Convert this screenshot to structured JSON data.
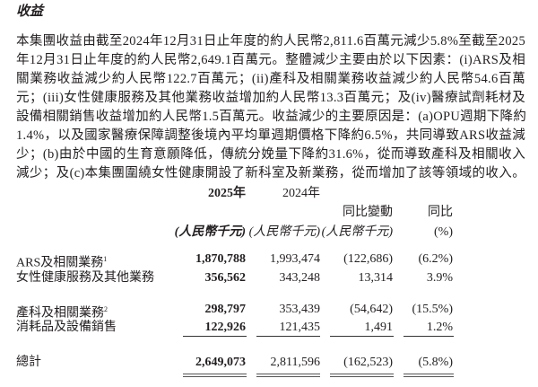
{
  "section_title": "收益",
  "paragraph_lines": [
    "本集團收益由截至2024年12月31日止年度的約人民幣2,811.6百萬元減少5.8%至截至2025",
    "年12月31日止年度的約人民幣2,649.1百萬元。整體減少主要由於以下因素：(i)ARS及相",
    "關業務收益減少約人民幣122.7百萬元；(ii)產科及相關業務收益減少約人民幣54.6百萬",
    "元；(iii)女性健康服務及其他業務收益增加約人民幣13.3百萬元；及(iv)醫療試劑耗材及",
    "設備相關銷售收益增加約人民幣1.5百萬元。收益減少的主要原因是：(a)OPU週期下降約",
    "1.4%，以及國家醫療保障調整後境內平均單週期價格下降約6.5%，共同導致ARS收益減",
    "少；(b)由於中國的生育意願降低，傳統分娩量下降約31.6%，從而導致產科及相關收入",
    "減少；及(c)本集團圍繞女性健康開設了新科室及新業務，從而增加了該等領域的收入。"
  ],
  "table": {
    "headers": {
      "y2025": "2025年",
      "y2024": "2024年",
      "change": "同比變動",
      "yoy": "同比",
      "unit2025": "(人民幣千元)",
      "unit2024": "(人民幣千元)",
      "unit_change": "(人民幣千元)",
      "unit_yoy": "(%)"
    },
    "rows": [
      {
        "label": "ARS及相關業務",
        "note": "1",
        "y2025": "1,870,788",
        "y2024": "1,993,474",
        "change": "(122,686)",
        "yoy": "(6.2%)"
      },
      {
        "label": "女性健康服務及其他業務",
        "note": "",
        "y2025": "356,562",
        "y2024": "343,248",
        "change": "13,314",
        "yoy": "3.9%"
      },
      {
        "label": "產科及相關業務",
        "note": "2",
        "y2025": "298,797",
        "y2024": "353,439",
        "change": "(54,642)",
        "yoy": "(15.5%)"
      },
      {
        "label": "消耗品及設備銷售",
        "note": "",
        "y2025": "122,926",
        "y2024": "121,435",
        "change": "1,491",
        "yoy": "1.2%"
      }
    ],
    "total": {
      "label": "總計",
      "y2025": "2,649,073",
      "y2024": "2,811,596",
      "change": "(162,523)",
      "yoy": "(5.8%)"
    }
  }
}
